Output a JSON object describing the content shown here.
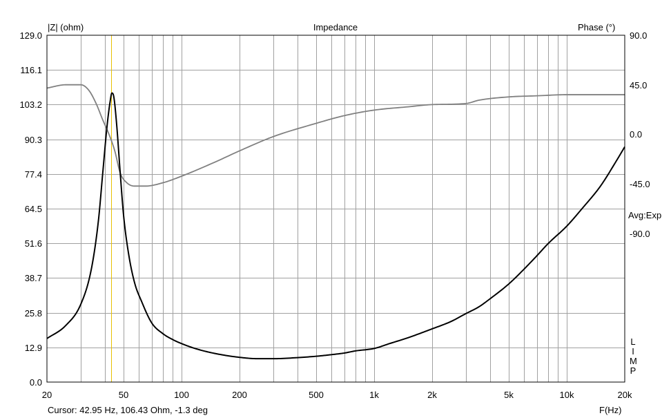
{
  "chart_data": {
    "type": "line",
    "title": "Impedance",
    "ylabel_left": "|Z| (ohm)",
    "ylabel_right": "Phase (°)",
    "xlabel": "F(Hz)",
    "x_scale": "log",
    "xlim": [
      20,
      20000
    ],
    "ylim_left": [
      0,
      129
    ],
    "ylim_right": [
      -225,
      90
    ],
    "y_ticks_left": [
      "129.0",
      "116.1",
      "103.2",
      "90.3",
      "77.4",
      "64.5",
      "51.6",
      "38.7",
      "25.8",
      "12.9",
      "0.0"
    ],
    "y_ticks_right": [
      "90.0",
      "45.0",
      "0.0",
      "-45.0",
      "-90.0"
    ],
    "x_ticks": [
      {
        "value": 20,
        "label": "20"
      },
      {
        "value": 50,
        "label": "50"
      },
      {
        "value": 100,
        "label": "100"
      },
      {
        "value": 200,
        "label": "200"
      },
      {
        "value": 500,
        "label": "500"
      },
      {
        "value": 1000,
        "label": "1k"
      },
      {
        "value": 2000,
        "label": "2k"
      },
      {
        "value": 5000,
        "label": "5k"
      },
      {
        "value": 10000,
        "label": "10k"
      },
      {
        "value": 20000,
        "label": "20k"
      }
    ],
    "grid": true,
    "averaging_label": "Avg:Exp",
    "mode_label": [
      "L",
      "I",
      "M",
      "P"
    ],
    "cursor": {
      "freq": 42.95,
      "text": "Cursor: 42.95 Hz, 106.43 Ohm, -1.3 deg",
      "color": "#e8c000"
    },
    "series": [
      {
        "name": "Impedance",
        "axis": "left",
        "color": "#000000",
        "points": [
          [
            20,
            16.2
          ],
          [
            25,
            21
          ],
          [
            30,
            29
          ],
          [
            34,
            42
          ],
          [
            37,
            60
          ],
          [
            39,
            78
          ],
          [
            41,
            95
          ],
          [
            42.5,
            104
          ],
          [
            43.5,
            107.5
          ],
          [
            44.5,
            106
          ],
          [
            46,
            96
          ],
          [
            48,
            78
          ],
          [
            50,
            62
          ],
          [
            53,
            48
          ],
          [
            57,
            37
          ],
          [
            62,
            30
          ],
          [
            70,
            22
          ],
          [
            80,
            18
          ],
          [
            90,
            15.8
          ],
          [
            100,
            14.3
          ],
          [
            120,
            12.3
          ],
          [
            150,
            10.6
          ],
          [
            200,
            9.2
          ],
          [
            250,
            8.7
          ],
          [
            300,
            8.7
          ],
          [
            400,
            9.1
          ],
          [
            500,
            9.6
          ],
          [
            600,
            10.2
          ],
          [
            700,
            10.8
          ],
          [
            800,
            11.6
          ],
          [
            1000,
            12.5
          ],
          [
            1200,
            14.3
          ],
          [
            1500,
            16.5
          ],
          [
            2000,
            19.8
          ],
          [
            2500,
            22.5
          ],
          [
            3000,
            25.5
          ],
          [
            3500,
            28
          ],
          [
            4000,
            31
          ],
          [
            5000,
            36.5
          ],
          [
            6000,
            42
          ],
          [
            7000,
            47
          ],
          [
            8000,
            51.5
          ],
          [
            10000,
            58
          ],
          [
            12000,
            64.5
          ],
          [
            15000,
            73
          ],
          [
            18000,
            82
          ],
          [
            20000,
            87.5
          ]
        ]
      },
      {
        "name": "Phase",
        "axis": "right",
        "color": "#808080",
        "points": [
          [
            20,
            42
          ],
          [
            25,
            45
          ],
          [
            30,
            45
          ],
          [
            33,
            40
          ],
          [
            36,
            28
          ],
          [
            39,
            13
          ],
          [
            42,
            0
          ],
          [
            45,
            -15
          ],
          [
            48,
            -35
          ],
          [
            52,
            -44
          ],
          [
            57,
            -47
          ],
          [
            65,
            -47
          ],
          [
            80,
            -44
          ],
          [
            100,
            -38
          ],
          [
            150,
            -25
          ],
          [
            200,
            -15
          ],
          [
            300,
            -2
          ],
          [
            500,
            10
          ],
          [
            700,
            17
          ],
          [
            1000,
            22
          ],
          [
            1500,
            25
          ],
          [
            2000,
            27
          ],
          [
            3000,
            28
          ],
          [
            3500,
            31
          ],
          [
            5000,
            34
          ],
          [
            7000,
            35
          ],
          [
            10000,
            36
          ],
          [
            20000,
            36
          ]
        ]
      }
    ]
  }
}
